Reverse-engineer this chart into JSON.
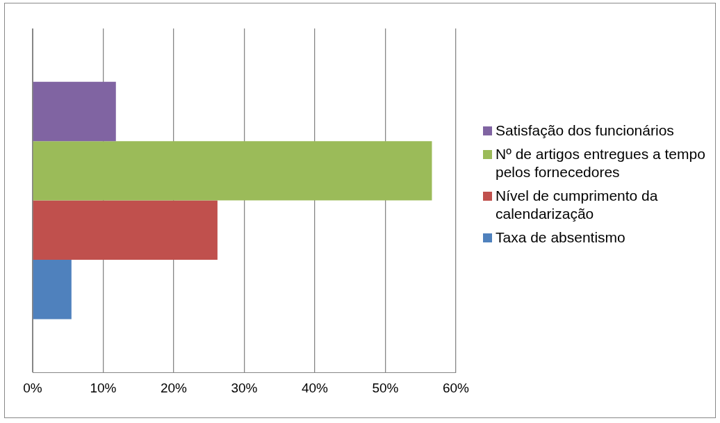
{
  "chart_data": {
    "type": "bar",
    "orientation": "horizontal",
    "categories": [
      null
    ],
    "series": [
      {
        "name": "Satisfação dos funcionários",
        "color": "#8064a2",
        "values": [
          11.8
        ]
      },
      {
        "name": "Nº de artigos entregues a tempo pelos fornecedores",
        "color": "#9bbb59",
        "values": [
          56.6
        ]
      },
      {
        "name": "Nível de cumprimento da calendarização",
        "color": "#c0504d",
        "values": [
          26.2
        ]
      },
      {
        "name": "Taxa de absentismo",
        "color": "#4f81bd",
        "values": [
          5.5
        ]
      }
    ],
    "xlim": [
      0,
      60
    ],
    "xticks": [
      {
        "value": 0,
        "label": "0%"
      },
      {
        "value": 10,
        "label": "10%"
      },
      {
        "value": 20,
        "label": "20%"
      },
      {
        "value": 30,
        "label": "30%"
      },
      {
        "value": 40,
        "label": "40%"
      },
      {
        "value": 50,
        "label": "50%"
      },
      {
        "value": 60,
        "label": "60%"
      }
    ],
    "grid": "x",
    "legend": "right"
  }
}
